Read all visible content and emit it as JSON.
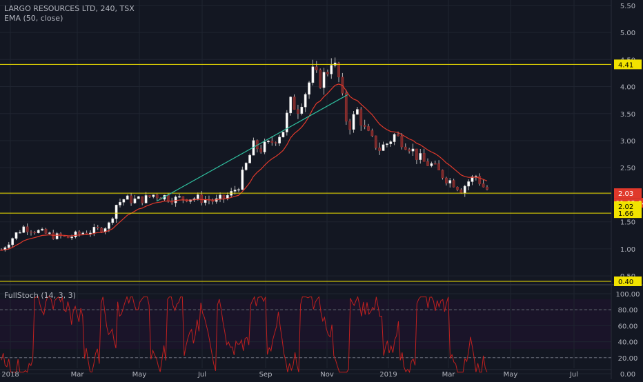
{
  "header": {
    "title": "LARGO RESOURCES LTD, 240, TSX",
    "ema_label": "EMA (50, close)",
    "stoch_label": "FullStoch (14, 3, 3)"
  },
  "colors": {
    "background": "#131722",
    "grid": "#1f2430",
    "axis_text": "#b2b5be",
    "up_candle": "#ffffff",
    "down_candle": "#7a2b2b",
    "wick": "#b7b7b7",
    "ema": "#e0392b",
    "trendline": "#2fbf9f",
    "horizontal_level": "#f2e300",
    "stoch": "#c0201f",
    "countdown_bg": "#e0392b"
  },
  "chart_data": [
    {
      "type": "candlestick",
      "title": "LARGO RESOURCES LTD, 240, TSX",
      "x_labels": [
        "2018",
        "Mar",
        "May",
        "Jul",
        "Sep",
        "Nov",
        "2019",
        "Mar",
        "May",
        "Jul"
      ],
      "y_ticks": [
        "5.50",
        "5.00",
        "4.50",
        "4.00",
        "3.50",
        "3.00",
        "2.50",
        "2.00",
        "1.50",
        "1.00",
        "0.50"
      ],
      "ylim": [
        0.4,
        5.6
      ],
      "y_scale": "linear",
      "grid": true,
      "price_trend": [
        [
          0,
          0.98
        ],
        [
          4,
          1.28
        ],
        [
          6,
          1.4
        ],
        [
          10,
          1.32
        ],
        [
          14,
          1.24
        ],
        [
          18,
          1.21
        ],
        [
          22,
          1.3
        ],
        [
          26,
          1.35
        ],
        [
          29,
          1.45
        ],
        [
          31,
          1.82
        ],
        [
          33,
          1.92
        ],
        [
          36,
          1.9
        ],
        [
          39,
          1.93
        ],
        [
          41,
          2.0
        ],
        [
          44,
          1.97
        ],
        [
          47,
          1.92
        ],
        [
          50,
          1.95
        ],
        [
          53,
          1.93
        ],
        [
          56,
          1.9
        ],
        [
          58,
          1.88
        ],
        [
          60,
          1.94
        ],
        [
          62,
          2.02
        ],
        [
          64,
          2.18
        ],
        [
          66,
          2.55
        ],
        [
          68,
          2.9
        ],
        [
          70,
          2.85
        ],
        [
          72,
          2.92
        ],
        [
          74,
          3.05
        ],
        [
          76,
          3.2
        ],
        [
          78,
          3.7
        ],
        [
          80,
          3.6
        ],
        [
          82,
          3.9
        ],
        [
          84,
          4.25
        ],
        [
          86,
          4.1
        ],
        [
          88,
          4.3
        ],
        [
          89,
          4.5
        ],
        [
          90,
          4.35
        ],
        [
          91,
          4.15
        ],
        [
          92,
          3.75
        ],
        [
          93,
          3.4
        ],
        [
          94,
          3.3
        ],
        [
          96,
          3.55
        ],
        [
          98,
          3.2
        ],
        [
          100,
          3.0
        ],
        [
          102,
          2.85
        ],
        [
          104,
          2.95
        ],
        [
          106,
          3.1
        ],
        [
          108,
          3.0
        ],
        [
          110,
          2.9
        ],
        [
          112,
          2.72
        ],
        [
          114,
          2.6
        ],
        [
          116,
          2.55
        ],
        [
          118,
          2.42
        ],
        [
          120,
          2.3
        ],
        [
          122,
          2.22
        ],
        [
          124,
          2.1
        ],
        [
          126,
          2.25
        ],
        [
          128,
          2.35
        ],
        [
          130,
          2.15
        ],
        [
          132,
          2.05
        ]
      ],
      "candle_count": 132,
      "ema": {
        "name": "EMA (50, close)",
        "period": 50
      },
      "trendline": {
        "from": [
          "Nov",
          3.85
        ],
        "to": [
          "May",
          1.88
        ]
      },
      "horizontal_levels": [
        {
          "value": 4.41,
          "label": "4.41"
        },
        {
          "value": 2.03,
          "label": "2.03"
        },
        {
          "value": 1.66,
          "label": "1.66"
        },
        {
          "value": 0.4,
          "label": "0.40"
        }
      ],
      "current_price": {
        "value": 2.02,
        "label": "2.02",
        "countdown": "01:03:04"
      }
    },
    {
      "type": "line",
      "name": "FullStoch (14, 3, 3)",
      "y_ticks": [
        "100.00",
        "80.00",
        "60.00",
        "40.00",
        "20.00",
        "0.00"
      ],
      "ylim": [
        0,
        100
      ],
      "bands": [
        20,
        80
      ]
    }
  ]
}
